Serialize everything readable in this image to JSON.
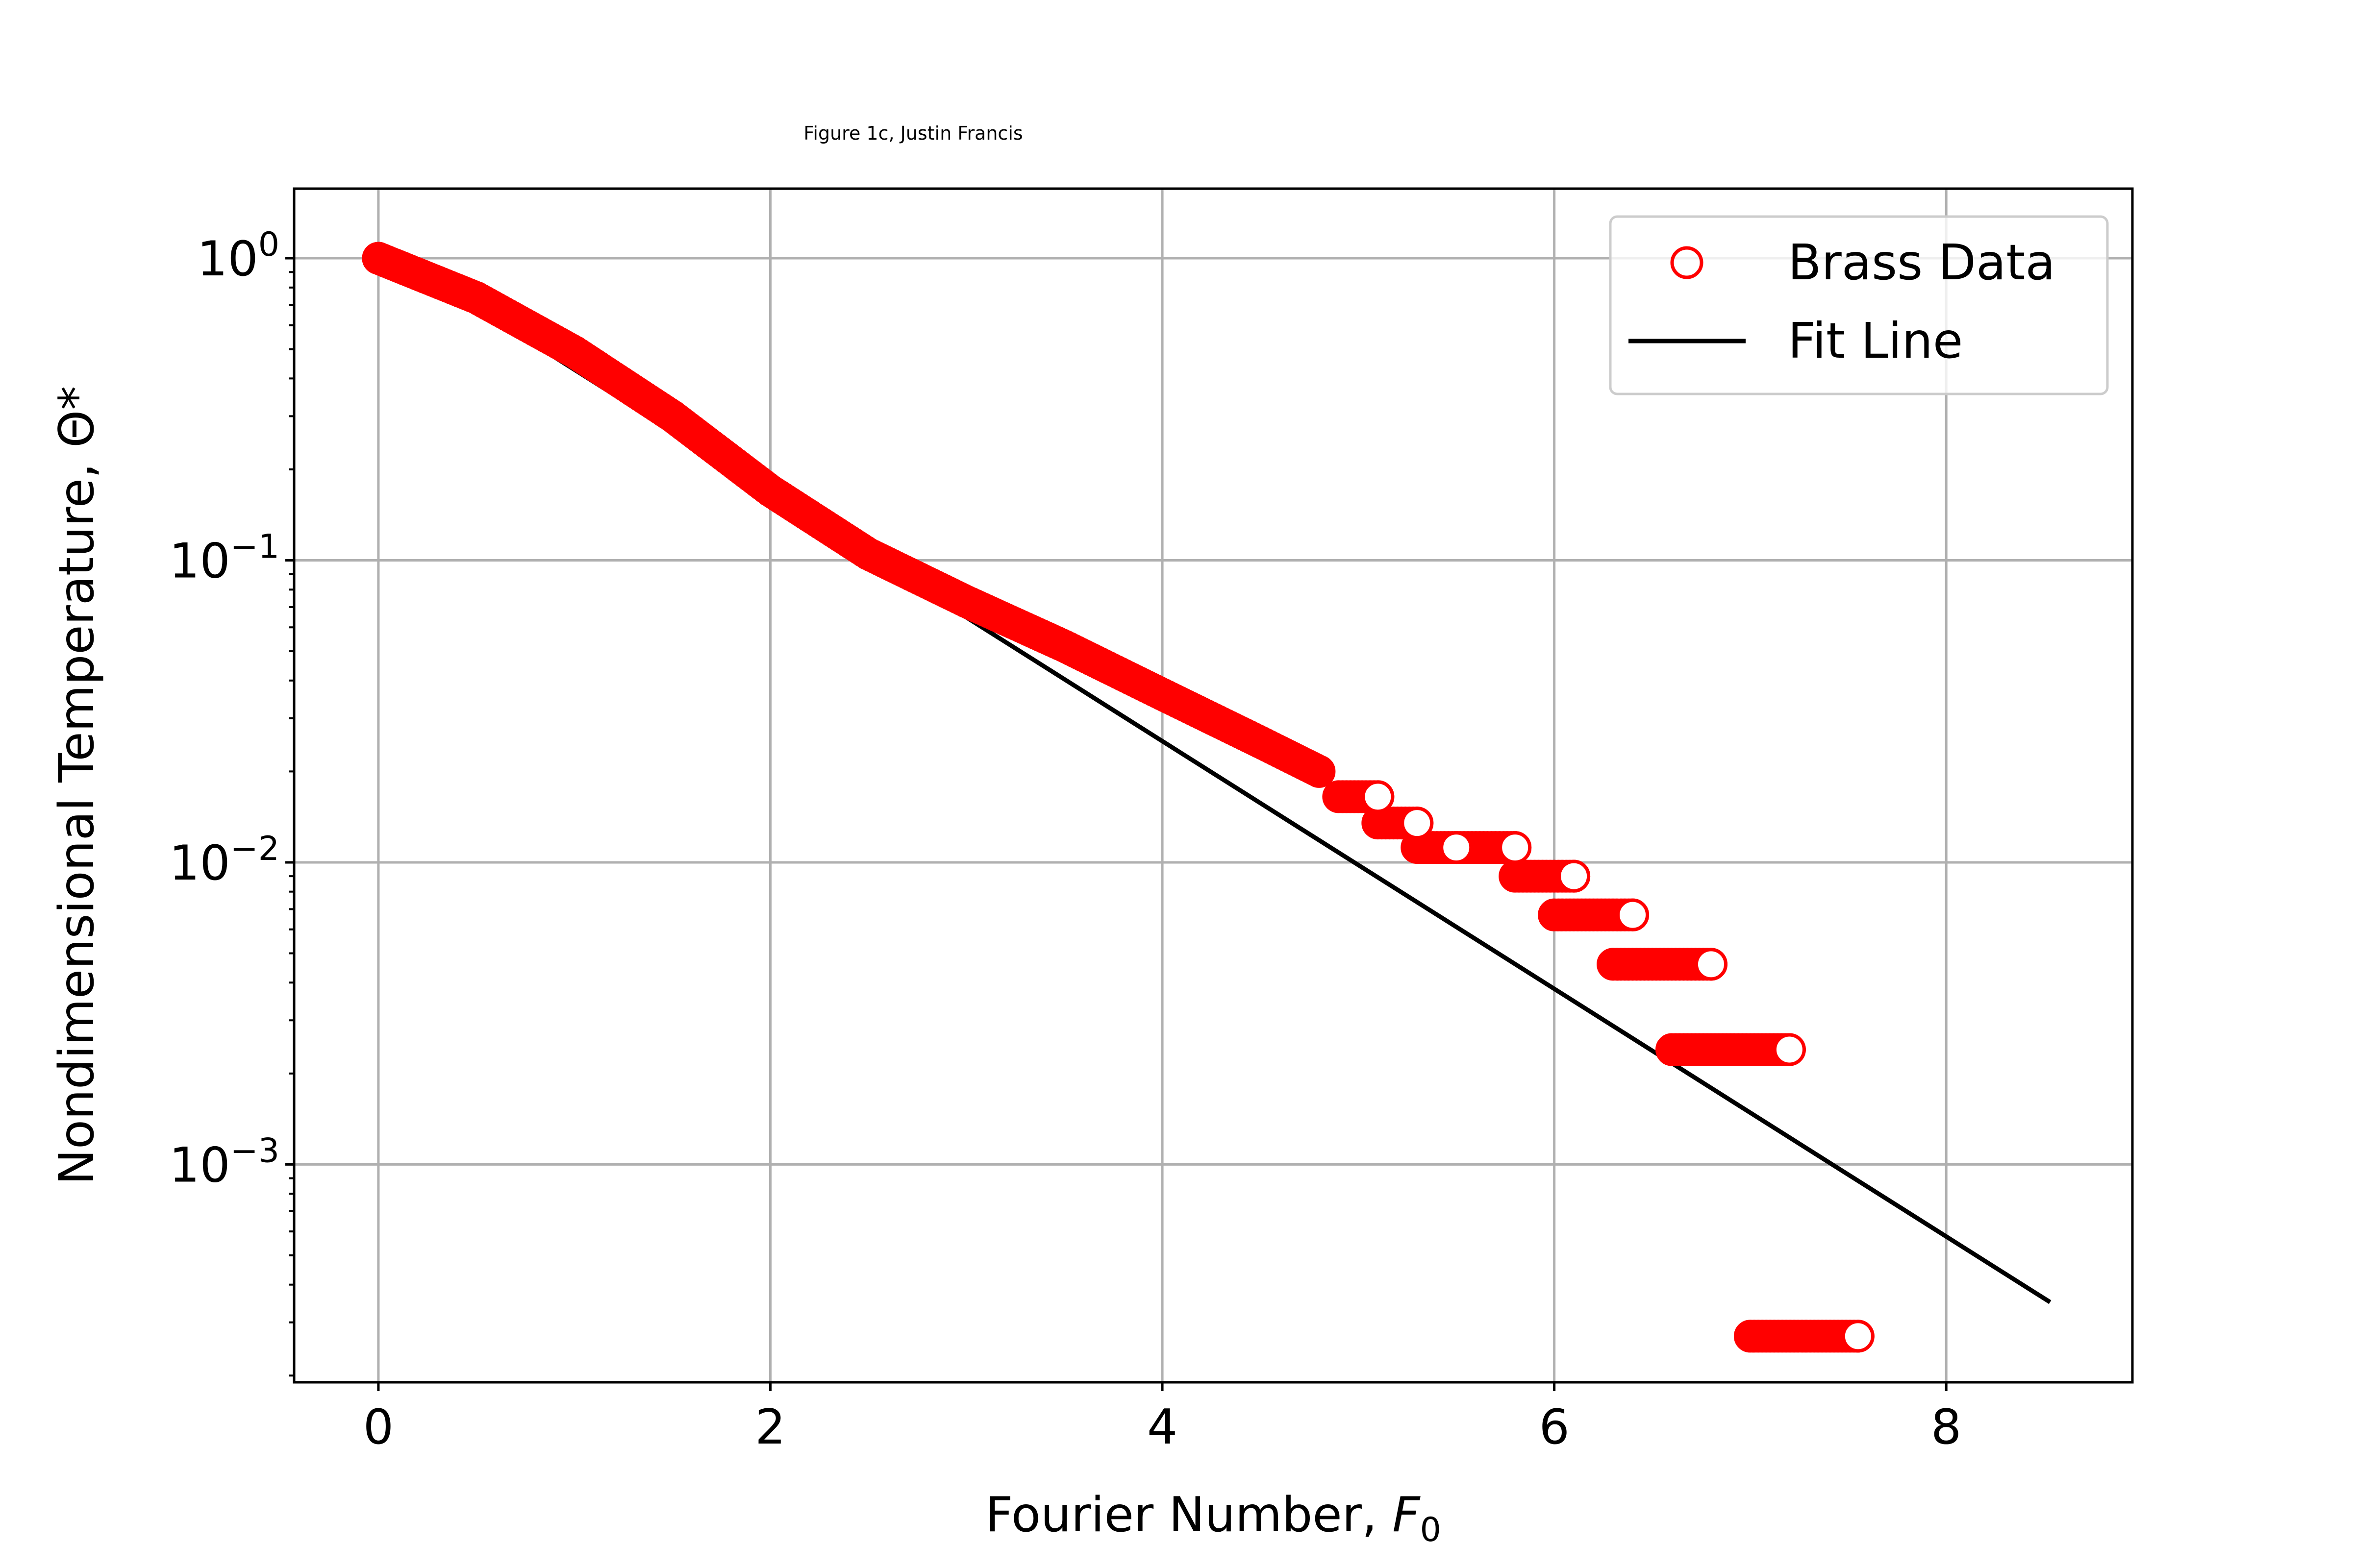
{
  "chart_data": {
    "type": "scatter",
    "title": "Figure 1c, Justin Francis",
    "xlabel": "Fourier Number, ",
    "xlabel_symbol": "F",
    "xlabel_subscript": "0",
    "ylabel": "Nondimensional Temperature, Θ*",
    "x_scale": "linear",
    "y_scale": "log",
    "xlim": [
      -0.43,
      8.95
    ],
    "ylim": [
      0.00019,
      1.7
    ],
    "x_ticks": [
      0,
      2,
      4,
      6,
      8
    ],
    "x_tick_labels": [
      "0",
      "2",
      "4",
      "6",
      "8"
    ],
    "y_ticks": [
      1,
      0.1,
      0.01,
      0.001
    ],
    "y_tick_labels": [
      {
        "base": "10",
        "exp": "0"
      },
      {
        "base": "10",
        "exp": "−1"
      },
      {
        "base": "10",
        "exp": "−2"
      },
      {
        "base": "10",
        "exp": "−3"
      }
    ],
    "grid": true,
    "legend": {
      "position": "upper right",
      "entries": [
        {
          "label": "Brass Data",
          "marker": "open-circle",
          "color": "#ff0000"
        },
        {
          "label": "Fit Line",
          "marker": "line",
          "color": "#000000"
        }
      ]
    },
    "series": [
      {
        "name": "Brass Data",
        "kind": "scatter",
        "color": "#ff0000",
        "marker": "open-circle",
        "description": "Dense data points; smooth decay 1.0 → ~0.02 for F0 0–5, then quantized plateaus",
        "curve_points": [
          {
            "x": 0.0,
            "y": 1.0
          },
          {
            "x": 0.5,
            "y": 0.74
          },
          {
            "x": 1.0,
            "y": 0.49
          },
          {
            "x": 1.5,
            "y": 0.3
          },
          {
            "x": 2.0,
            "y": 0.17
          },
          {
            "x": 2.5,
            "y": 0.105
          },
          {
            "x": 3.0,
            "y": 0.073
          },
          {
            "x": 3.5,
            "y": 0.052
          },
          {
            "x": 4.0,
            "y": 0.036
          },
          {
            "x": 4.5,
            "y": 0.025
          },
          {
            "x": 4.8,
            "y": 0.02
          }
        ],
        "plateaus": [
          {
            "x_start": 4.9,
            "x_end": 5.1,
            "y": 0.0165
          },
          {
            "x_start": 5.1,
            "x_end": 5.3,
            "y": 0.0135
          },
          {
            "x_start": 5.3,
            "x_end": 5.5,
            "y": 0.0112
          },
          {
            "x_start": 5.5,
            "x_end": 5.8,
            "y": 0.0112
          },
          {
            "x_start": 5.8,
            "x_end": 6.1,
            "y": 0.009
          },
          {
            "x_start": 6.0,
            "x_end": 6.4,
            "y": 0.0067
          },
          {
            "x_start": 6.3,
            "x_end": 6.8,
            "y": 0.0046
          },
          {
            "x_start": 6.6,
            "x_end": 7.2,
            "y": 0.0024
          },
          {
            "x_start": 7.0,
            "x_end": 7.55,
            "y": 0.00027
          }
        ]
      },
      {
        "name": "Fit Line",
        "kind": "line",
        "color": "#000000",
        "x": [
          0.0,
          8.53
        ],
        "y": [
          1.1,
          0.00035
        ]
      }
    ]
  }
}
